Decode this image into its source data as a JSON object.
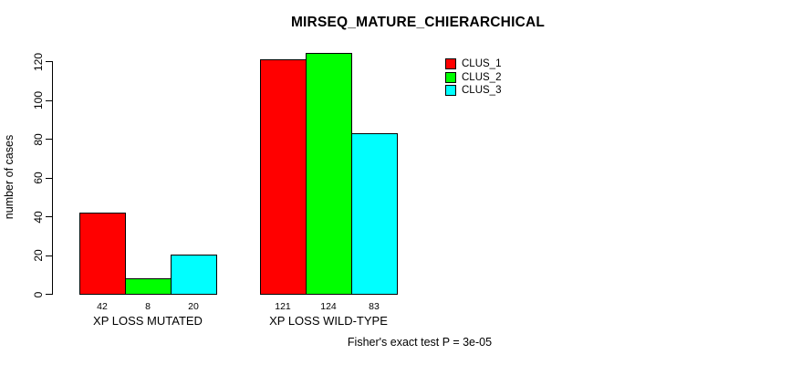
{
  "chart_data": {
    "type": "bar",
    "title": "MIRSEQ_MATURE_CHIERARCHICAL",
    "ylabel": "number of cases",
    "xlabel": "",
    "categories": [
      "XP LOSS MUTATED",
      "XP LOSS WILD-TYPE"
    ],
    "series": [
      {
        "name": "CLUS_1",
        "color": "#FF0000",
        "values": [
          42,
          121
        ]
      },
      {
        "name": "CLUS_2",
        "color": "#00FF00",
        "values": [
          8,
          124
        ]
      },
      {
        "name": "CLUS_3",
        "color": "#00FFFF",
        "values": [
          20,
          83
        ]
      }
    ],
    "bar_value_labels": [
      [
        42,
        8,
        20
      ],
      [
        121,
        124,
        83
      ]
    ],
    "yticks": [
      0,
      20,
      40,
      60,
      80,
      100,
      120
    ],
    "ylim": [
      0,
      130
    ],
    "grid": false,
    "legend_position": "top-right",
    "annotation": "Fisher's exact test P = 3e-05",
    "bar_border_color": "#000000",
    "background_color": "#FFFFFF"
  }
}
